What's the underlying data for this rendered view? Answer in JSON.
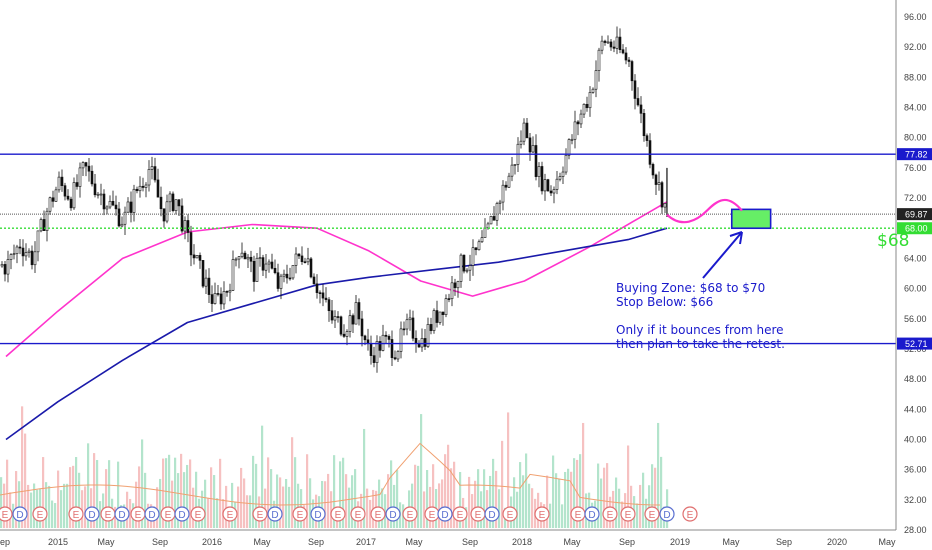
{
  "chart_data": {
    "type": "candlestick",
    "title": "",
    "xlabel": "",
    "ylabel": "",
    "x_tick_labels": [
      "ep",
      "2015",
      "May",
      "Sep",
      "2016",
      "May",
      "Sep",
      "2017",
      "May",
      "Sep",
      "2018",
      "May",
      "Sep",
      "2019",
      "May",
      "Sep",
      "2020",
      "May"
    ],
    "y_tick_labels": [
      "28.00",
      "32.00",
      "36.00",
      "40.00",
      "44.00",
      "48.00",
      "52.00",
      "56.00",
      "60.00",
      "64.00",
      "68.00",
      "72.00",
      "76.00",
      "80.00",
      "84.00",
      "88.00",
      "92.00",
      "96.00"
    ],
    "ylim": [
      28,
      98
    ],
    "grid": false,
    "price_path": [
      {
        "x": "2014-09",
        "y": 63
      },
      {
        "x": "2014-10",
        "y": 66
      },
      {
        "x": "2014-11",
        "y": 64
      },
      {
        "x": "2014-12",
        "y": 70
      },
      {
        "x": "2015-01",
        "y": 74
      },
      {
        "x": "2015-02",
        "y": 72
      },
      {
        "x": "2015-03",
        "y": 76
      },
      {
        "x": "2015-04",
        "y": 73
      },
      {
        "x": "2015-05",
        "y": 71
      },
      {
        "x": "2015-06",
        "y": 69
      },
      {
        "x": "2015-07",
        "y": 73
      },
      {
        "x": "2015-08",
        "y": 76
      },
      {
        "x": "2015-09",
        "y": 70
      },
      {
        "x": "2015-10",
        "y": 72
      },
      {
        "x": "2015-11",
        "y": 66
      },
      {
        "x": "2015-12",
        "y": 62
      },
      {
        "x": "2016-01",
        "y": 58
      },
      {
        "x": "2016-02",
        "y": 60
      },
      {
        "x": "2016-03",
        "y": 66
      },
      {
        "x": "2016-04",
        "y": 62
      },
      {
        "x": "2016-05",
        "y": 64
      },
      {
        "x": "2016-06",
        "y": 60
      },
      {
        "x": "2016-07",
        "y": 63
      },
      {
        "x": "2016-08",
        "y": 65
      },
      {
        "x": "2016-09",
        "y": 60
      },
      {
        "x": "2016-10",
        "y": 56
      },
      {
        "x": "2016-11",
        "y": 55
      },
      {
        "x": "2016-12",
        "y": 57
      },
      {
        "x": "2017-01",
        "y": 51
      },
      {
        "x": "2017-02",
        "y": 53
      },
      {
        "x": "2017-03",
        "y": 52
      },
      {
        "x": "2017-04",
        "y": 55
      },
      {
        "x": "2017-05",
        "y": 53
      },
      {
        "x": "2017-06",
        "y": 56
      },
      {
        "x": "2017-07",
        "y": 59
      },
      {
        "x": "2017-08",
        "y": 63
      },
      {
        "x": "2017-09",
        "y": 64
      },
      {
        "x": "2017-10",
        "y": 67
      },
      {
        "x": "2017-11",
        "y": 72
      },
      {
        "x": "2017-12",
        "y": 76
      },
      {
        "x": "2018-01",
        "y": 82
      },
      {
        "x": "2018-02",
        "y": 75
      },
      {
        "x": "2018-03",
        "y": 73
      },
      {
        "x": "2018-04",
        "y": 77
      },
      {
        "x": "2018-05",
        "y": 82
      },
      {
        "x": "2018-06",
        "y": 86
      },
      {
        "x": "2018-07",
        "y": 93
      },
      {
        "x": "2018-08",
        "y": 92
      },
      {
        "x": "2018-09",
        "y": 90
      },
      {
        "x": "2018-10",
        "y": 82
      },
      {
        "x": "2018-11",
        "y": 75
      },
      {
        "x": "2018-12",
        "y": 69.87
      }
    ],
    "moving_averages": [
      {
        "name": "",
        "color": "#ff33cc",
        "values": [
          {
            "x": "2014-09",
            "y": 51
          },
          {
            "x": "2015-01",
            "y": 57
          },
          {
            "x": "2015-06",
            "y": 64
          },
          {
            "x": "2015-11",
            "y": 67.5
          },
          {
            "x": "2016-04",
            "y": 68.5
          },
          {
            "x": "2016-09",
            "y": 68
          },
          {
            "x": "2017-01",
            "y": 65
          },
          {
            "x": "2017-05",
            "y": 61
          },
          {
            "x": "2017-09",
            "y": 59
          },
          {
            "x": "2018-01",
            "y": 61
          },
          {
            "x": "2018-06",
            "y": 65.5
          },
          {
            "x": "2018-10",
            "y": 69.5
          },
          {
            "x": "2018-12",
            "y": 71.5
          }
        ]
      },
      {
        "name": "",
        "color": "#1a1aaa",
        "values": [
          {
            "x": "2014-09",
            "y": 40
          },
          {
            "x": "2015-01",
            "y": 45
          },
          {
            "x": "2015-06",
            "y": 50.5
          },
          {
            "x": "2015-11",
            "y": 55.5
          },
          {
            "x": "2016-04",
            "y": 58
          },
          {
            "x": "2016-09",
            "y": 60.5
          },
          {
            "x": "2017-01",
            "y": 61.5
          },
          {
            "x": "2017-06",
            "y": 62.5
          },
          {
            "x": "2017-11",
            "y": 63.5
          },
          {
            "x": "2018-04",
            "y": 65
          },
          {
            "x": "2018-09",
            "y": 66.5
          },
          {
            "x": "2018-12",
            "y": 68
          }
        ]
      }
    ],
    "horizontal_lines": [
      {
        "value": 77.82,
        "label": "77.82",
        "color": "#1a1acc"
      },
      {
        "value": 52.71,
        "label": "52.71",
        "color": "#1a1acc"
      },
      {
        "value": 69.87,
        "label": "69.87",
        "color": "#555555"
      },
      {
        "value": 68.0,
        "label": "68.00",
        "color": "#33dd33"
      }
    ],
    "support_label": "$68",
    "annotations": [
      "Buying Zone: $68 to $70",
      "Stop Below: $66",
      "Only if it bounces from here",
      "then plan to take the retest."
    ],
    "buying_zone": {
      "y_low": 68,
      "y_high": 70.5,
      "x_start": "2019-05",
      "x_end": "2019-08",
      "color": "#66ee66"
    },
    "earnings_markers": {
      "label": "E",
      "count": 22
    },
    "dividend_markers": {
      "label": "D",
      "count": 14
    }
  }
}
